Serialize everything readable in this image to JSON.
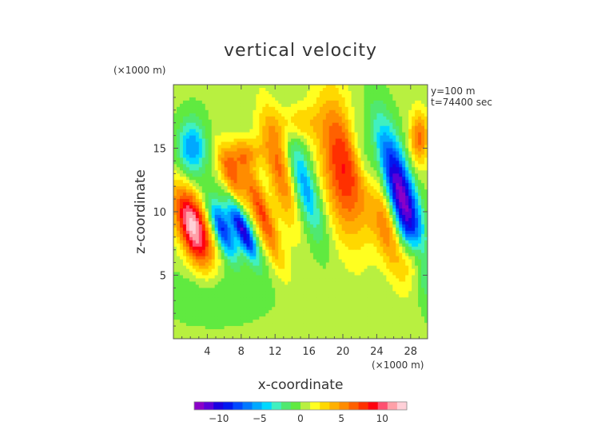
{
  "chart_data": {
    "type": "heatmap",
    "title": "vertical velocity",
    "xlabel": "x-coordinate",
    "ylabel": "z-coordinate",
    "x_unit": "(×1000 m)",
    "y_unit": "(×1000 m)",
    "annotations": [
      "y=100 m",
      "t=74400 sec"
    ],
    "xlim": [
      0,
      30
    ],
    "ylim": [
      0,
      20
    ],
    "x_ticks": [
      4,
      8,
      12,
      16,
      20,
      24,
      28
    ],
    "x_tick_labels": [
      "4",
      "8",
      "12",
      "16",
      "20",
      "24",
      "28"
    ],
    "y_ticks": [
      5,
      10,
      15
    ],
    "y_tick_labels": [
      "5",
      "10",
      "15"
    ],
    "colorbar": {
      "min": -13,
      "max": 13,
      "ticks": [
        -10,
        -5,
        0,
        5,
        10
      ],
      "tick_labels": [
        "−10",
        "−5",
        "0",
        "5",
        "10"
      ],
      "colors": [
        "#8a00c8",
        "#5a00d8",
        "#1a00e0",
        "#0018f0",
        "#0048ff",
        "#0078ff",
        "#00a8ff",
        "#00d8ff",
        "#40f0c0",
        "#50e870",
        "#60ea40",
        "#b8f040",
        "#ffff20",
        "#ffd800",
        "#ffb000",
        "#ff8c00",
        "#ff6000",
        "#ff3000",
        "#ff0010",
        "#ff5070",
        "#ffa0a8",
        "#ffd0d8"
      ]
    },
    "background_level": 0.3,
    "features": [
      {
        "x": 2.2,
        "z": 15.0,
        "w": -6,
        "sx": 1.2,
        "sz": 1.6
      },
      {
        "x": 2.3,
        "z": 8.8,
        "w": 12,
        "sx": 1.3,
        "sz": 2.2,
        "tilt": -0.4
      },
      {
        "x": 5.8,
        "z": 8.6,
        "w": -9,
        "sx": 0.8,
        "sz": 1.6,
        "tilt": -0.5
      },
      {
        "x": 6.8,
        "z": 13.0,
        "w": 6,
        "sx": 0.9,
        "sz": 1.6,
        "tilt": -0.5
      },
      {
        "x": 8.2,
        "z": 8.5,
        "w": -11,
        "sx": 0.7,
        "sz": 1.6,
        "tilt": -0.6
      },
      {
        "x": 8.6,
        "z": 14.6,
        "w": 4,
        "sx": 1.4,
        "sz": 0.9
      },
      {
        "x": 10.5,
        "z": 9.8,
        "w": 7,
        "sx": 0.8,
        "sz": 2.8,
        "tilt": -0.5
      },
      {
        "x": 12.5,
        "z": 13.5,
        "w": 6,
        "sx": 1.1,
        "sz": 3.2,
        "tilt": -0.3
      },
      {
        "x": 15.5,
        "z": 12.0,
        "w": -6,
        "sx": 1.0,
        "sz": 2.8,
        "tilt": -0.4
      },
      {
        "x": 20.0,
        "z": 13.5,
        "w": 8,
        "sx": 1.8,
        "sz": 4.0,
        "tilt": -0.2
      },
      {
        "x": 23.0,
        "z": 13.0,
        "w": -6,
        "sx": 0.9,
        "sz": 3.0,
        "tilt": -0.4
      },
      {
        "x": 24.5,
        "z": 10.0,
        "w": 8,
        "sx": 1.1,
        "sz": 3.2,
        "tilt": -0.4
      },
      {
        "x": 27.0,
        "z": 11.0,
        "w": -13,
        "sx": 1.2,
        "sz": 3.8,
        "tilt": -0.4
      },
      {
        "x": 29.0,
        "z": 15.8,
        "w": 6,
        "sx": 0.8,
        "sz": 1.5
      },
      {
        "x": 28.5,
        "z": 6.5,
        "w": 5,
        "sx": 1.0,
        "sz": 1.4
      },
      {
        "x": 14.5,
        "z": 17.0,
        "w": 3,
        "sx": 2.0,
        "sz": 1.0
      },
      {
        "x": 5.0,
        "z": 3.5,
        "w": -1.5,
        "sx": 4.0,
        "sz": 1.5
      }
    ],
    "grid": false,
    "legend_placement": "bottom"
  }
}
